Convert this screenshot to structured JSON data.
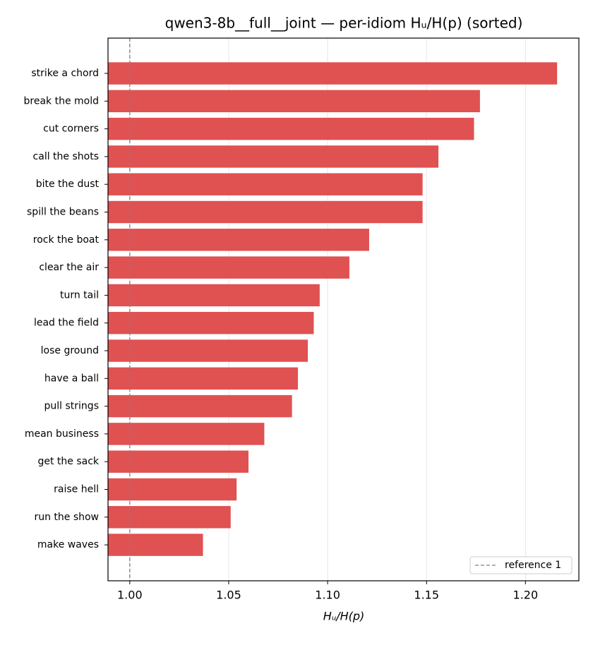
{
  "chart_data": {
    "type": "barh",
    "title": "qwen3-8b__full__joint — per-idiom Hᵤ/H(p) (sorted)",
    "xlabel": "Hᵤ/H(p)",
    "categories": [
      "strike a chord",
      "break the mold",
      "cut corners",
      "call the shots",
      "bite the dust",
      "spill the beans",
      "rock the boat",
      "clear the air",
      "turn tail",
      "lead the field",
      "lose ground",
      "have a ball",
      "pull strings",
      "mean business",
      "get the sack",
      "raise hell",
      "run the show",
      "make waves"
    ],
    "values": [
      1.216,
      1.177,
      1.174,
      1.156,
      1.148,
      1.148,
      1.121,
      1.111,
      1.096,
      1.093,
      1.09,
      1.085,
      1.082,
      1.068,
      1.06,
      1.054,
      1.051,
      1.037
    ],
    "color": "#e05152",
    "xlim": [
      0.989,
      1.227
    ],
    "xticks": [
      {
        "value": 1,
        "label": "1.00"
      },
      1.05,
      {
        "value": 1.1,
        "label": "1.10"
      },
      1.15,
      {
        "value": 1.2,
        "label": "1.20"
      }
    ],
    "grid": true,
    "reference": {
      "label": "reference 1",
      "value": 1,
      "color": "#808080"
    },
    "legend": "lower right"
  }
}
